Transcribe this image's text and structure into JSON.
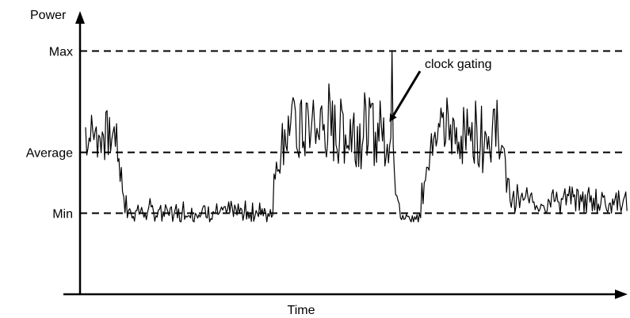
{
  "chart_data": {
    "type": "line",
    "ylabel": "Power",
    "xlabel": "Time",
    "ylim": [
      0,
      1
    ],
    "y_ticks": [
      {
        "label": "Max",
        "value": 0.84
      },
      {
        "label": "Average",
        "value": 0.49
      },
      {
        "label": "Min",
        "value": 0.28
      }
    ],
    "grid": false,
    "legend": "none",
    "annotations": [
      {
        "text": "clock gating",
        "points_to_x": 0.565
      }
    ],
    "line_color": "#000000",
    "reference_line_style": "dashed",
    "phases": [
      {
        "x_start": 0.0,
        "x_end": 0.055,
        "level": 0.55,
        "noise": 0.09,
        "period": 4
      },
      {
        "x_start": 0.075,
        "x_end": 0.34,
        "level": 0.28,
        "noise": 0.03,
        "period": 2
      },
      {
        "x_start": 0.365,
        "x_end": 0.56,
        "level": 0.56,
        "noise": 0.12,
        "period": 3
      },
      {
        "x_start": 0.585,
        "x_end": 0.615,
        "level": 0.26,
        "noise": 0.02,
        "period": 6
      },
      {
        "x_start": 0.64,
        "x_end": 0.76,
        "level": 0.55,
        "noise": 0.1,
        "period": 3
      },
      {
        "x_start": 0.785,
        "x_end": 1.0,
        "level": 0.32,
        "noise": 0.04,
        "period": 2
      }
    ],
    "peak": {
      "x": 0.565,
      "y": 0.84
    }
  }
}
